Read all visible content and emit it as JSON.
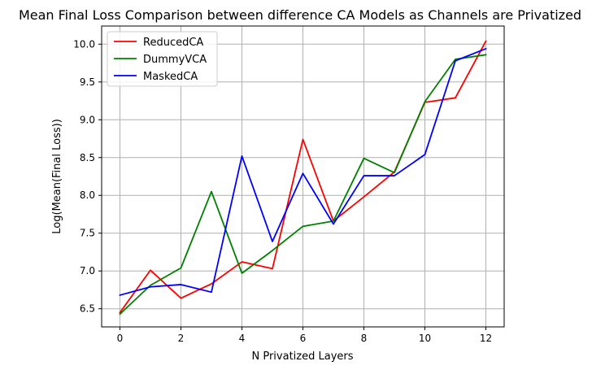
{
  "chart_data": {
    "type": "line",
    "title": "Mean Final Loss Comparison between difference CA Models as Channels are Privatized",
    "xlabel": "N Privatized Layers",
    "ylabel": "Log(Mean(Final Loss))",
    "x": [
      0,
      1,
      2,
      3,
      4,
      5,
      6,
      7,
      8,
      9,
      10,
      11,
      12
    ],
    "xlim": [
      -0.6,
      12.6
    ],
    "ylim": [
      6.26,
      10.24
    ],
    "xticks": [
      0,
      2,
      4,
      6,
      8,
      10,
      12
    ],
    "yticks": [
      6.5,
      7.0,
      7.5,
      8.0,
      8.5,
      9.0,
      9.5,
      10.0
    ],
    "xtick_labels": [
      "0",
      "2",
      "4",
      "6",
      "8",
      "10",
      "12"
    ],
    "ytick_labels": [
      "6.5",
      "7.0",
      "7.5",
      "8.0",
      "8.5",
      "9.0",
      "9.5",
      "10.0"
    ],
    "grid": true,
    "legend_position": "top-left",
    "series": [
      {
        "name": "ReducedCA",
        "color": "#ff0000",
        "values": [
          6.45,
          7.01,
          6.64,
          6.83,
          7.12,
          7.03,
          8.74,
          7.66,
          7.98,
          8.31,
          9.23,
          9.29,
          10.04
        ]
      },
      {
        "name": "DummyVCA",
        "color": "#008000",
        "values": [
          6.43,
          6.81,
          7.04,
          8.05,
          6.97,
          7.27,
          7.59,
          7.66,
          8.49,
          8.3,
          9.24,
          9.8,
          9.86
        ]
      },
      {
        "name": "MaskedCA",
        "color": "#0000ff",
        "values": [
          6.68,
          6.79,
          6.82,
          6.72,
          8.52,
          7.39,
          8.29,
          7.62,
          8.26,
          8.26,
          8.54,
          9.78,
          9.94
        ]
      }
    ]
  }
}
